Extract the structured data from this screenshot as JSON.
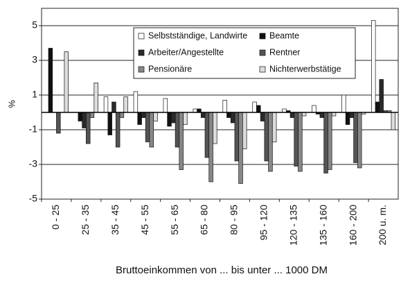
{
  "chart_data": {
    "type": "bar",
    "y_label": "%",
    "x_label": "Bruttoeinkommen von ... bis unter ... 1000 DM",
    "categories": [
      "0 - 25",
      "25 - 35",
      "35 - 45",
      "45 - 55",
      "55 - 65",
      "65 - 80",
      "80 - 95",
      "95 - 120",
      "120 - 135",
      "135 - 160",
      "160 - 200",
      "200 u. m."
    ],
    "series": [
      {
        "name": "Selbstständige, Landwirte",
        "color": "#ffffff",
        "values": [
          0,
          0,
          0.9,
          1.2,
          0.8,
          0.2,
          0.7,
          0.6,
          0.2,
          0.4,
          1.0,
          5.3
        ]
      },
      {
        "name": "Beamte",
        "color": "#111111",
        "values": [
          3.7,
          -0.5,
          -1.3,
          -0.7,
          -0.8,
          0.2,
          -0.3,
          0.4,
          0.1,
          -0.1,
          -0.7,
          0.6
        ]
      },
      {
        "name": "Arbeiter/Angestellte",
        "color": "#2a2a2a",
        "values": [
          0,
          -0.9,
          0.6,
          -0.3,
          -0.6,
          -0.3,
          -0.6,
          -0.5,
          -0.3,
          -0.3,
          -0.3,
          1.9
        ]
      },
      {
        "name": "Rentner",
        "color": "#555555",
        "values": [
          -1.2,
          -1.8,
          -2.0,
          -1.7,
          -2.0,
          -2.6,
          -2.8,
          -2.8,
          -3.1,
          -3.5,
          -2.9,
          0.1
        ]
      },
      {
        "name": "Pensionäre",
        "color": "#888888",
        "values": [
          0,
          -0.3,
          -0.3,
          -2.0,
          -3.3,
          -4.0,
          -4.1,
          -3.4,
          -3.4,
          -3.3,
          -3.2,
          0.1
        ]
      },
      {
        "name": "Nichterwerbstätige",
        "color": "#dddddd",
        "values": [
          3.5,
          1.7,
          0.9,
          -0.5,
          -0.7,
          -1.8,
          -2.1,
          -1.7,
          -0.2,
          -0.2,
          -0.1,
          -1.0
        ]
      }
    ],
    "ylim": [
      -5,
      6
    ],
    "yticks": [
      -5,
      -3,
      -1,
      1,
      3,
      5
    ],
    "grid": true
  }
}
